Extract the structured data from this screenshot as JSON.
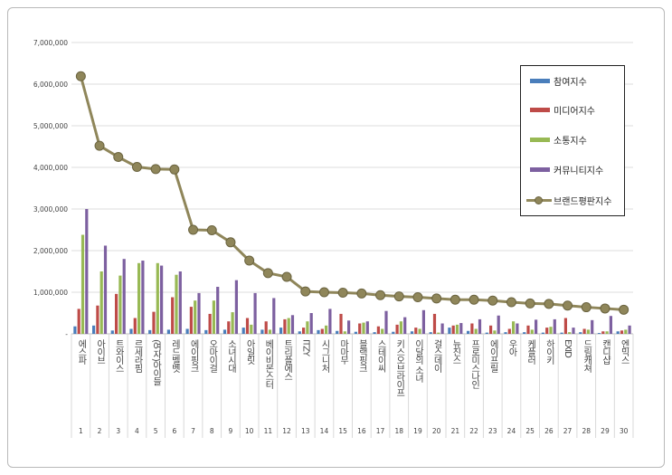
{
  "chart_data": {
    "type": "bar",
    "ylim": [
      0,
      7000000
    ],
    "yticks": [
      "-",
      "1,000,000",
      "2,000,000",
      "3,000,000",
      "4,000,000",
      "5,000,000",
      "6,000,000",
      "7,000,000"
    ],
    "grid": true,
    "legend_position": "top-right",
    "categories": [
      "에스파",
      "아이브",
      "트와이스",
      "르세라핌",
      "(여자)아이들",
      "레드벨벳",
      "에이핑크",
      "오마이걸",
      "소녀시대",
      "아일릿",
      "베이비몬스터",
      "트리플에스",
      "ITZY",
      "시그니처",
      "마마무",
      "블랙핑크",
      "스테이씨",
      "키스오브라이프",
      "이달의 소녀",
      "걸스데이",
      "뉴진스",
      "프로미스나인",
      "에이프릴",
      "우아",
      "케플러",
      "하이키",
      "EXID",
      "드림캐쳐",
      "캔디샵",
      "엔믹스"
    ],
    "ranks": [
      "1",
      "2",
      "3",
      "4",
      "5",
      "6",
      "7",
      "8",
      "9",
      "10",
      "11",
      "12",
      "13",
      "14",
      "15",
      "16",
      "17",
      "18",
      "19",
      "20",
      "21",
      "22",
      "23",
      "24",
      "25",
      "26",
      "27",
      "28",
      "29",
      "30"
    ],
    "series": [
      {
        "name": "참여지수",
        "color": "#4a7ebb",
        "type": "bar",
        "values": [
          180000,
          200000,
          80000,
          120000,
          90000,
          100000,
          120000,
          90000,
          100000,
          150000,
          100000,
          150000,
          60000,
          90000,
          70000,
          50000,
          40000,
          50000,
          60000,
          40000,
          150000,
          70000,
          30000,
          40000,
          40000,
          30000,
          30000,
          40000,
          20000,
          60000
        ]
      },
      {
        "name": "미디어지수",
        "color": "#be4b48",
        "type": "bar",
        "values": [
          600000,
          680000,
          960000,
          380000,
          530000,
          880000,
          650000,
          480000,
          300000,
          380000,
          300000,
          350000,
          150000,
          120000,
          480000,
          250000,
          180000,
          220000,
          150000,
          480000,
          200000,
          250000,
          200000,
          120000,
          200000,
          150000,
          380000,
          120000,
          60000,
          80000
        ]
      },
      {
        "name": "소통지수",
        "color": "#98b954",
        "type": "bar",
        "values": [
          2380000,
          1500000,
          1400000,
          1700000,
          1700000,
          1420000,
          800000,
          800000,
          520000,
          220000,
          100000,
          380000,
          300000,
          200000,
          60000,
          270000,
          120000,
          300000,
          120000,
          30000,
          220000,
          120000,
          80000,
          300000,
          100000,
          170000,
          40000,
          100000,
          60000,
          100000
        ]
      },
      {
        "name": "커뮤니티지수",
        "color": "#7d60a0",
        "type": "bar",
        "values": [
          3000000,
          2120000,
          1800000,
          1760000,
          1640000,
          1500000,
          980000,
          1130000,
          1290000,
          980000,
          860000,
          450000,
          500000,
          600000,
          320000,
          300000,
          550000,
          400000,
          570000,
          250000,
          260000,
          350000,
          440000,
          250000,
          340000,
          350000,
          150000,
          330000,
          430000,
          200000
        ]
      },
      {
        "name": "브랜드평판지수",
        "color": "#8f865a",
        "type": "line",
        "values": [
          6190000,
          4520000,
          4250000,
          4010000,
          3960000,
          3950000,
          2500000,
          2490000,
          2200000,
          1760000,
          1460000,
          1370000,
          1020000,
          1000000,
          990000,
          970000,
          930000,
          900000,
          880000,
          850000,
          820000,
          820000,
          800000,
          760000,
          730000,
          720000,
          680000,
          640000,
          610000,
          580000
        ]
      }
    ]
  }
}
